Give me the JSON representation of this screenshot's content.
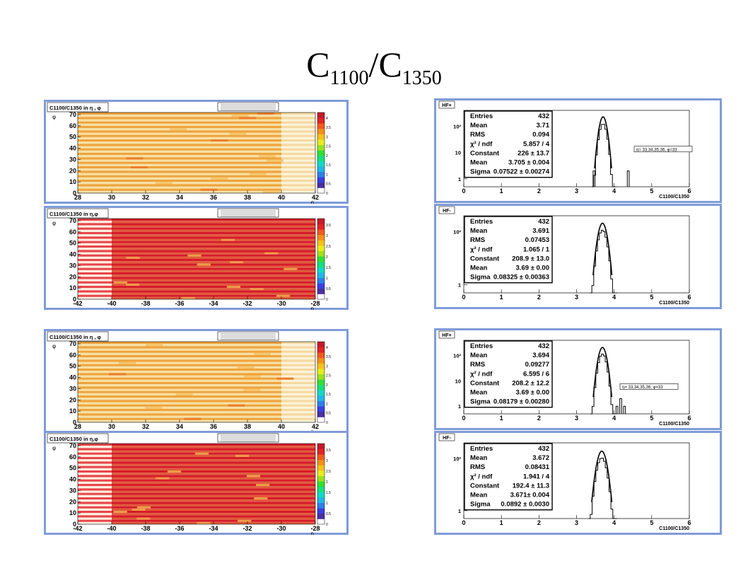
{
  "title": {
    "c1": "C",
    "s1": "1100",
    "slash": "/",
    "c2": "C",
    "s2": "1350"
  },
  "colors": {
    "frame": "#7f9bd8",
    "pad": "#ffffff",
    "hist": "#000000",
    "heat_low": "#f4e0a6",
    "heat_mid": "#f0a33a",
    "heat_high": "#d61a2b"
  },
  "palette": [
    "#ffffff",
    "#4a2fa0",
    "#3a3fe0",
    "#2f7fe8",
    "#21b7e6",
    "#12d9c4",
    "#15e07a",
    "#30e030",
    "#9be21d",
    "#e8ec1c",
    "#f5c01a",
    "#f4901a",
    "#f05a1e",
    "#e02424",
    "#c51a2b"
  ],
  "maps": [
    {
      "title": "C1100/C1350 in η , φ",
      "x_ticks": [
        "28",
        "30",
        "32",
        "34",
        "36",
        "38",
        "40",
        "42"
      ],
      "y_ticks": [
        "0",
        "10",
        "20",
        "30",
        "40",
        "50",
        "60",
        "70"
      ],
      "xlabel": "η",
      "ylabel": "φ",
      "pal_ticks": [
        "0",
        "0.5",
        "1",
        "1.5",
        "2",
        "2.5",
        "3",
        "3.5",
        "4"
      ],
      "pal_max": 4.3,
      "mode": "plus"
    },
    {
      "title": "C1100/C1350 in η,φ",
      "x_ticks": [
        "-42",
        "-40",
        "-38",
        "-36",
        "-34",
        "-32",
        "-30",
        "-28"
      ],
      "y_ticks": [
        "0",
        "10",
        "20",
        "30",
        "40",
        "50",
        "60",
        "70"
      ],
      "xlabel": "η",
      "ylabel": "φ",
      "pal_ticks": [
        "0",
        "0.5",
        "1",
        "1.5",
        "2",
        "2.5",
        "3",
        "3.5"
      ],
      "pal_max": 3.8,
      "mode": "minus"
    },
    {
      "title": "C1100/C1350 in η , φ",
      "x_ticks": [
        "28",
        "30",
        "32",
        "34",
        "36",
        "38",
        "40",
        "42"
      ],
      "y_ticks": [
        "0",
        "10",
        "20",
        "30",
        "40",
        "50",
        "60",
        "70"
      ],
      "xlabel": "η",
      "ylabel": "φ",
      "pal_ticks": [
        "0",
        "0.5",
        "1",
        "1.5",
        "2",
        "2.5",
        "3",
        "3.5",
        "4"
      ],
      "pal_max": 4.3,
      "mode": "plus"
    },
    {
      "title": "C1100/C1350 in η,φ",
      "x_ticks": [
        "-42",
        "-40",
        "-38",
        "-36",
        "-34",
        "-32",
        "-30",
        "-28"
      ],
      "y_ticks": [
        "0",
        "10",
        "20",
        "30",
        "40",
        "50",
        "60",
        "70"
      ],
      "xlabel": "η",
      "ylabel": "φ",
      "pal_ticks": [
        "0",
        "0.5",
        "1",
        "1.5",
        "2",
        "2.5",
        "3",
        "3.5"
      ],
      "pal_max": 3.8,
      "mode": "minus"
    }
  ],
  "chart_data": [
    {
      "type": "heatmap",
      "title": "C1100/C1350 in η , φ",
      "x_range": [
        28,
        42
      ],
      "y_range": [
        0,
        72
      ],
      "xlabel": "η",
      "ylabel": "φ",
      "z_range": [
        0,
        4.3
      ]
    },
    {
      "type": "heatmap",
      "title": "C1100/C1350 in η,φ",
      "x_range": [
        -42,
        -28
      ],
      "y_range": [
        0,
        72
      ],
      "xlabel": "η",
      "ylabel": "φ",
      "z_range": [
        0,
        3.8
      ]
    },
    {
      "type": "heatmap",
      "title": "C1100/C1350 in η , φ",
      "x_range": [
        28,
        42
      ],
      "y_range": [
        0,
        72
      ],
      "xlabel": "η",
      "ylabel": "φ",
      "z_range": [
        0,
        4.3
      ]
    },
    {
      "type": "heatmap",
      "title": "C1100/C1350 in η,φ",
      "x_range": [
        -42,
        -28
      ],
      "y_range": [
        0,
        72
      ],
      "xlabel": "η",
      "ylabel": "φ",
      "z_range": [
        0,
        3.8
      ]
    },
    {
      "type": "bar",
      "title": "HF+",
      "xlabel": "C1100/C1350",
      "x_ticks": [
        0,
        1,
        2,
        3,
        4,
        5,
        6
      ],
      "y_ticks": [
        "1",
        "10",
        "10²"
      ],
      "log_y": true,
      "xlim": [
        0,
        6
      ],
      "stats": [
        [
          "Entries",
          "432"
        ],
        [
          "Mean",
          "3.71"
        ],
        [
          "RMS",
          "0.094"
        ],
        [
          "χ² / ndf",
          "5.857 / 4"
        ],
        [
          "Constant",
          "226 ± 13.7"
        ],
        [
          "Mean",
          "3.705 ± 0.004"
        ],
        [
          "Sigma",
          "0.07522 ± 0.00274"
        ]
      ],
      "fit": {
        "constant": 226,
        "mean": 3.705,
        "sigma": 0.07522
      },
      "extra_bins": [
        {
          "x": 3.44,
          "y": 2
        },
        {
          "x": 4.35,
          "y": 2
        }
      ],
      "annotation": "η= 33,34,35,36, φ=33"
    },
    {
      "type": "bar",
      "title": "HF-",
      "xlabel": "C1100/C1350",
      "x_ticks": [
        0,
        1,
        2,
        3,
        4,
        5,
        6
      ],
      "y_ticks": [
        "1",
        "10²"
      ],
      "log_y": true,
      "xlim": [
        0,
        6
      ],
      "stats": [
        [
          "Entries",
          "432"
        ],
        [
          "Mean",
          "3.691"
        ],
        [
          "RMS",
          "0.07453"
        ],
        [
          "χ² / ndf",
          "1.065 / 1"
        ],
        [
          "Constant",
          "208.9 ± 13.0"
        ],
        [
          "Mean",
          "3.69 ± 0.00"
        ],
        [
          "Sigma",
          "0.08325 ± 0.00363"
        ]
      ],
      "fit": {
        "constant": 208.9,
        "mean": 3.69,
        "sigma": 0.08325
      },
      "extra_bins": [],
      "annotation": ""
    },
    {
      "type": "bar",
      "title": "HF+",
      "xlabel": "C1100/C1350",
      "x_ticks": [
        0,
        1,
        2,
        3,
        4,
        5,
        6
      ],
      "y_ticks": [
        "1",
        "10",
        "10²"
      ],
      "log_y": true,
      "xlim": [
        0,
        6
      ],
      "stats": [
        [
          "Entries",
          "432"
        ],
        [
          "Mean",
          "3.694"
        ],
        [
          "RMS",
          "0.09277"
        ],
        [
          "χ² / ndf",
          "6.595 / 6"
        ],
        [
          "Constant",
          "208.2 ± 12.2"
        ],
        [
          "Mean",
          "3.69 ± 0.00"
        ],
        [
          "Sigma",
          "0.08179 ± 0.00280"
        ]
      ],
      "fit": {
        "constant": 208.2,
        "mean": 3.69,
        "sigma": 0.08179
      },
      "extra_bins": [
        {
          "x": 4.15,
          "y": 2
        },
        {
          "x": 4.25,
          "y": 1
        },
        {
          "x": 4.05,
          "y": 1
        }
      ],
      "annotation": "η= 33,34,35,36, φ=33"
    },
    {
      "type": "bar",
      "title": "HF-",
      "xlabel": "C1100/C1350",
      "x_ticks": [
        0,
        1,
        2,
        3,
        4,
        5,
        6
      ],
      "y_ticks": [
        "1",
        "10²"
      ],
      "log_y": true,
      "xlim": [
        0,
        6
      ],
      "stats": [
        [
          "Entries",
          "432"
        ],
        [
          "Mean",
          "3.672"
        ],
        [
          "RMS",
          "0.08431"
        ],
        [
          "χ² / ndf",
          "1.941 / 4"
        ],
        [
          "Constant",
          "192.4 ± 11.3"
        ],
        [
          "Mean",
          "3.671± 0.004"
        ],
        [
          "Sigma",
          "0.0892 ± 0.0030"
        ]
      ],
      "fit": {
        "constant": 192.4,
        "mean": 3.671,
        "sigma": 0.0892
      },
      "extra_bins": [],
      "annotation": ""
    }
  ]
}
